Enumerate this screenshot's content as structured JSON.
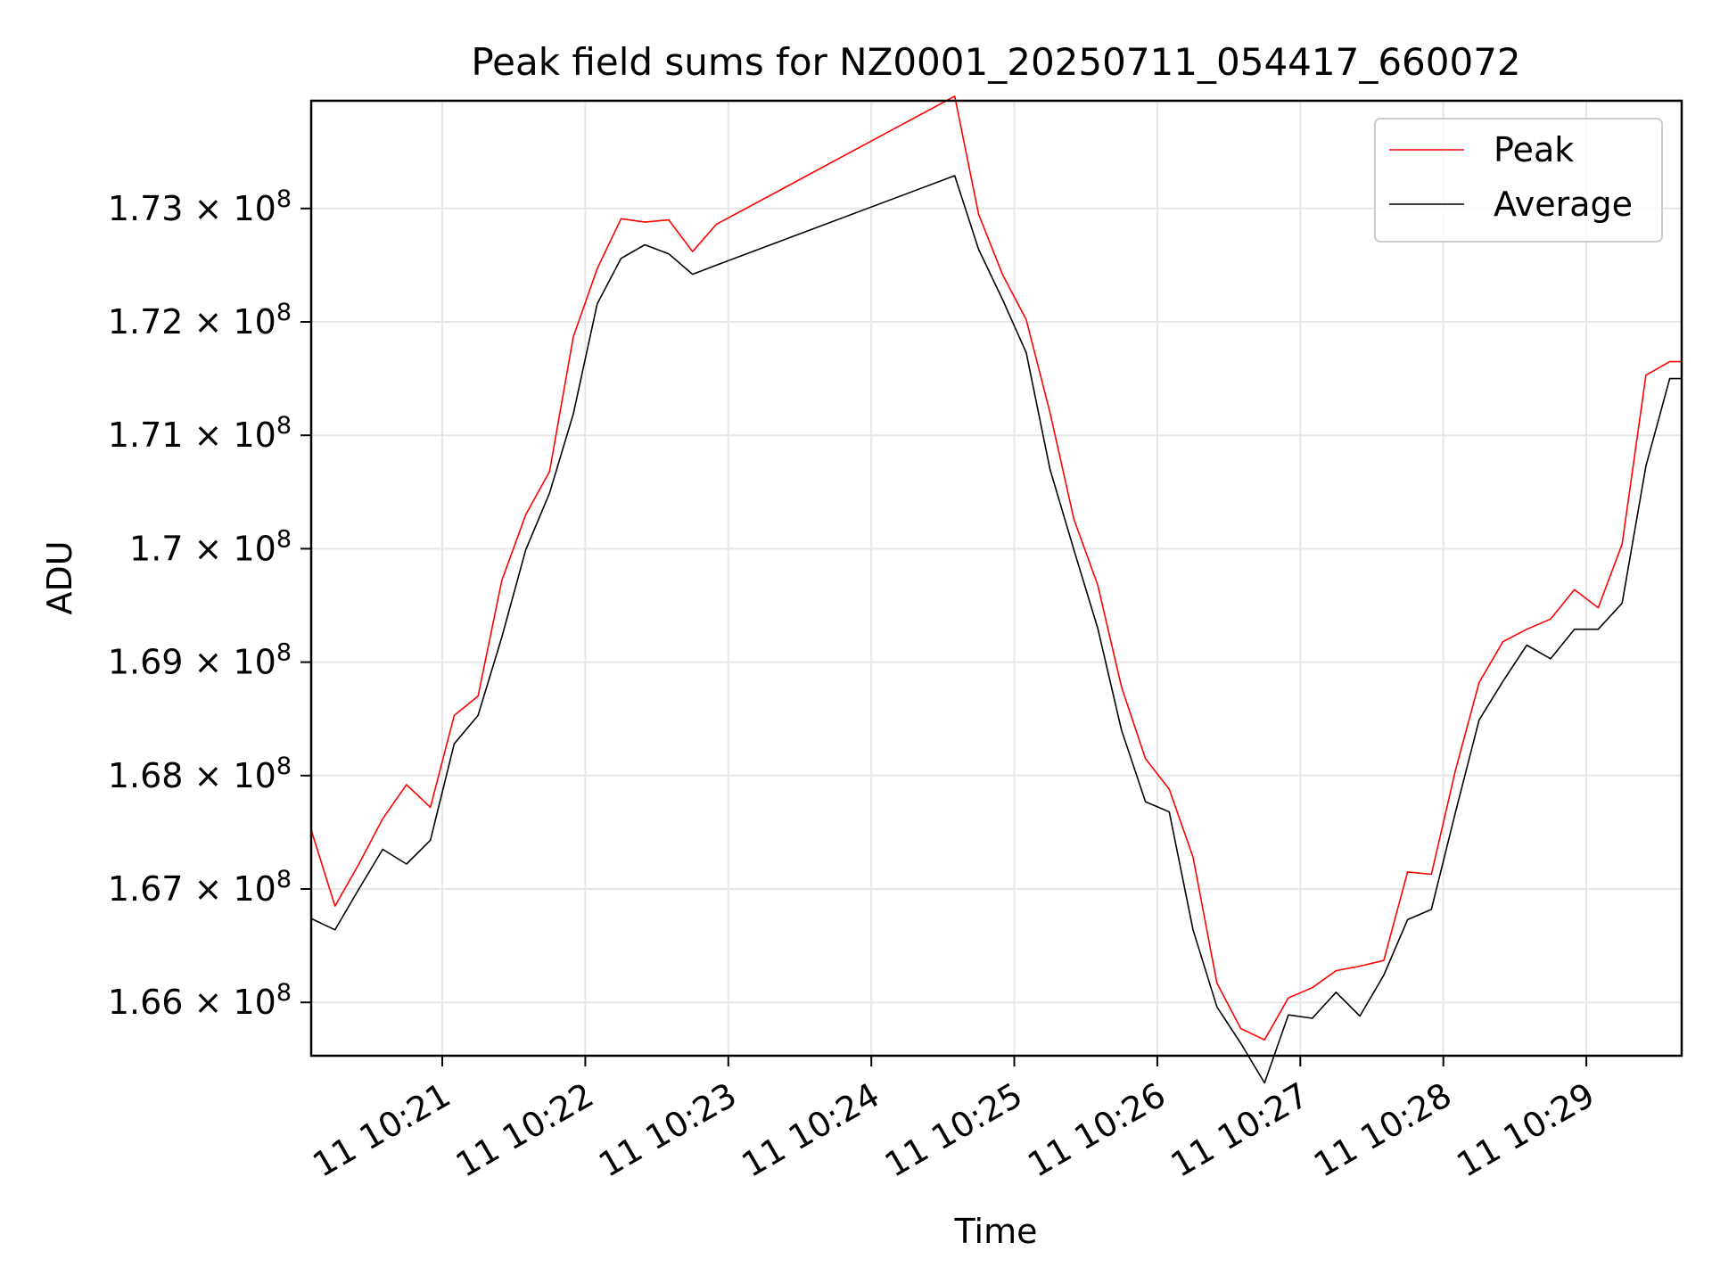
{
  "chart_data": {
    "type": "line",
    "title": "Peak field sums for NZ0001_20250711_054417_660072",
    "xlabel": "Time",
    "ylabel": "ADU",
    "xlim": [
      "10:20:05",
      "10:29:40"
    ],
    "ylim": [
      165530000,
      173950000
    ],
    "grid": true,
    "legend_position": "top-right",
    "xticks": [
      {
        "t": "10:21:00",
        "label": "11 10:21"
      },
      {
        "t": "10:22:00",
        "label": "11 10:22"
      },
      {
        "t": "10:23:00",
        "label": "11 10:23"
      },
      {
        "t": "10:24:00",
        "label": "11 10:24"
      },
      {
        "t": "10:25:00",
        "label": "11 10:25"
      },
      {
        "t": "10:26:00",
        "label": "11 10:26"
      },
      {
        "t": "10:27:00",
        "label": "11 10:27"
      },
      {
        "t": "10:28:00",
        "label": "11 10:28"
      },
      {
        "t": "10:29:00",
        "label": "11 10:29"
      }
    ],
    "yticks": [
      {
        "value": 166000000,
        "mantissa": "1.66"
      },
      {
        "value": 167000000,
        "mantissa": "1.67"
      },
      {
        "value": 168000000,
        "mantissa": "1.68"
      },
      {
        "value": 169000000,
        "mantissa": "1.69"
      },
      {
        "value": 170000000,
        "mantissa": "1.7"
      },
      {
        "value": 171000000,
        "mantissa": "1.71"
      },
      {
        "value": 172000000,
        "mantissa": "1.72"
      },
      {
        "value": 173000000,
        "mantissa": "1.73"
      }
    ],
    "ytick_suffix": {
      "times": "×",
      "base": "10",
      "exponent": "8"
    },
    "x": [
      "10:20:05",
      "10:20:15",
      "10:20:25",
      "10:20:35",
      "10:20:45",
      "10:20:55",
      "10:21:05",
      "10:21:15",
      "10:21:25",
      "10:21:35",
      "10:21:45",
      "10:21:55",
      "10:22:05",
      "10:22:15",
      "10:22:25",
      "10:22:35",
      "10:22:45",
      "10:22:55",
      "10:24:35",
      "10:24:45",
      "10:24:55",
      "10:25:05",
      "10:25:15",
      "10:25:25",
      "10:25:35",
      "10:25:45",
      "10:25:55",
      "10:26:05",
      "10:26:15",
      "10:26:25",
      "10:26:35",
      "10:26:45",
      "10:26:55",
      "10:27:05",
      "10:27:15",
      "10:27:25",
      "10:27:35",
      "10:27:45",
      "10:27:55",
      "10:28:05",
      "10:28:15",
      "10:28:25",
      "10:28:35",
      "10:28:45",
      "10:28:55",
      "10:29:05",
      "10:29:15",
      "10:29:25",
      "10:29:35",
      "10:29:40"
    ],
    "series": [
      {
        "name": "Peak",
        "color": "#ff0000",
        "values": [
          167520000,
          166850000,
          167220000,
          167620000,
          167920000,
          167720000,
          168530000,
          168700000,
          169720000,
          170300000,
          170680000,
          171870000,
          172470000,
          172910000,
          172880000,
          172900000,
          172620000,
          172860000,
          173990000,
          172950000,
          172420000,
          172020000,
          171200000,
          170260000,
          169680000,
          168780000,
          168150000,
          167880000,
          167280000,
          166170000,
          165770000,
          165670000,
          166040000,
          166130000,
          166280000,
          166320000,
          166370000,
          167150000,
          167130000,
          168040000,
          168820000,
          169180000,
          169290000,
          169380000,
          169640000,
          169480000,
          170040000,
          171530000,
          171650000,
          171650000
        ]
      },
      {
        "name": "Average",
        "color": "#000000",
        "values": [
          166740000,
          166640000,
          167000000,
          167350000,
          167220000,
          167430000,
          168280000,
          168530000,
          169220000,
          169990000,
          170490000,
          171190000,
          172160000,
          172560000,
          172680000,
          172600000,
          172420000,
          172500000,
          173290000,
          172640000,
          172200000,
          171730000,
          170700000,
          169990000,
          169300000,
          168400000,
          167770000,
          167680000,
          166640000,
          165960000,
          165640000,
          165290000,
          165890000,
          165860000,
          166090000,
          165880000,
          166240000,
          166730000,
          166820000,
          167670000,
          168490000,
          168830000,
          169150000,
          169030000,
          169290000,
          169290000,
          169520000,
          170730000,
          171500000,
          171500000
        ]
      }
    ]
  }
}
